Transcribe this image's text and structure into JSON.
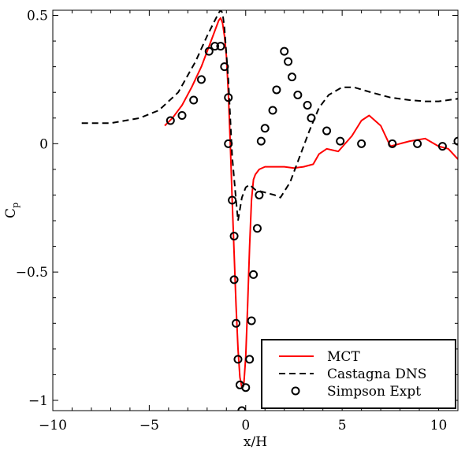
{
  "chart_data": {
    "type": "line",
    "xlabel": "x/H",
    "ylabel": "C",
    "ylabel_sub": "p",
    "xlim": [
      -10,
      11
    ],
    "ylim": [
      -1.04,
      0.52
    ],
    "x_ticks": [
      -10,
      -5,
      0,
      5,
      10
    ],
    "x_tick_labels": [
      "−10",
      "−5",
      "0",
      "5",
      "10"
    ],
    "y_ticks": [
      -1,
      -0.5,
      0,
      0.5
    ],
    "y_tick_labels": [
      "−1",
      "−0.5",
      "0",
      "0.5"
    ],
    "grid": false,
    "legend_position": "bottom-right",
    "series": [
      {
        "name": "MCT",
        "style": "solid",
        "color": "#ff0000",
        "x": [
          -4.2,
          -3.8,
          -3.3,
          -2.8,
          -2.3,
          -1.9,
          -1.6,
          -1.4,
          -1.3,
          -1.2,
          -1.1,
          -1.0,
          -0.9,
          -0.8,
          -0.7,
          -0.6,
          -0.5,
          -0.4,
          -0.3,
          -0.2,
          -0.1,
          0.0,
          0.1,
          0.2,
          0.3,
          0.4,
          0.5,
          0.7,
          1.0,
          1.5,
          2.0,
          2.5,
          3.0,
          3.5,
          3.8,
          4.2,
          4.8,
          5.5,
          6.0,
          6.4,
          7.0,
          7.5,
          8.0,
          8.5,
          9.3,
          10.0,
          10.5,
          11.0
        ],
        "y": [
          0.07,
          0.1,
          0.15,
          0.22,
          0.3,
          0.38,
          0.44,
          0.48,
          0.49,
          0.47,
          0.42,
          0.34,
          0.2,
          0.0,
          -0.22,
          -0.43,
          -0.63,
          -0.8,
          -0.91,
          -0.95,
          -0.94,
          -0.83,
          -0.63,
          -0.4,
          -0.22,
          -0.14,
          -0.12,
          -0.1,
          -0.09,
          -0.09,
          -0.09,
          -0.095,
          -0.09,
          -0.08,
          -0.04,
          -0.02,
          -0.03,
          0.03,
          0.09,
          0.11,
          0.07,
          -0.01,
          0.0,
          0.01,
          0.02,
          -0.01,
          -0.02,
          -0.06
        ]
      },
      {
        "name": "Castagna DNS",
        "style": "dashed",
        "color": "#000000",
        "x": [
          -8.5,
          -7.0,
          -5.5,
          -4.5,
          -3.5,
          -2.6,
          -2.0,
          -1.6,
          -1.4,
          -1.3,
          -1.2,
          -1.1,
          -0.9,
          -0.7,
          -0.5,
          -0.4,
          -0.2,
          0.0,
          0.2,
          0.5,
          1.0,
          1.5,
          1.8,
          2.3,
          2.8,
          3.3,
          3.8,
          4.3,
          5.0,
          5.6,
          6.5,
          7.5,
          8.5,
          9.3,
          10.0,
          11.0
        ],
        "y": [
          0.08,
          0.08,
          0.1,
          0.13,
          0.2,
          0.32,
          0.42,
          0.48,
          0.51,
          0.52,
          0.51,
          0.45,
          0.25,
          -0.05,
          -0.22,
          -0.3,
          -0.21,
          -0.17,
          -0.16,
          -0.18,
          -0.19,
          -0.2,
          -0.21,
          -0.15,
          -0.05,
          0.05,
          0.14,
          0.19,
          0.22,
          0.22,
          0.2,
          0.18,
          0.17,
          0.165,
          0.165,
          0.175
        ]
      },
      {
        "name": "Simpson Expt",
        "style": "markers",
        "color": "#000000",
        "x": [
          -3.9,
          -3.3,
          -2.7,
          -2.3,
          -1.9,
          -1.6,
          -1.3,
          -1.1,
          -0.9,
          -0.9,
          -0.7,
          -0.6,
          -0.6,
          -0.5,
          -0.4,
          -0.3,
          -0.2,
          0.0,
          0.2,
          0.3,
          0.4,
          0.6,
          0.7,
          0.8,
          1.0,
          1.4,
          1.6,
          2.0,
          2.2,
          2.4,
          2.7,
          3.2,
          3.4,
          4.2,
          4.9,
          6.0,
          7.6,
          8.9,
          10.2,
          11.0
        ],
        "y": [
          0.09,
          0.11,
          0.17,
          0.25,
          0.36,
          0.38,
          0.38,
          0.3,
          0.18,
          0.0,
          -0.22,
          -0.36,
          -0.53,
          -0.7,
          -0.84,
          -0.94,
          -1.04,
          -0.95,
          -0.84,
          -0.69,
          -0.51,
          -0.33,
          -0.2,
          0.01,
          0.06,
          0.13,
          0.21,
          0.36,
          0.32,
          0.26,
          0.19,
          0.15,
          0.1,
          0.05,
          0.01,
          0.0,
          0.0,
          0.0,
          -0.01,
          0.01
        ]
      }
    ],
    "legend": {
      "entries": [
        "MCT",
        "Castagna DNS",
        "Simpson Expt"
      ]
    }
  }
}
